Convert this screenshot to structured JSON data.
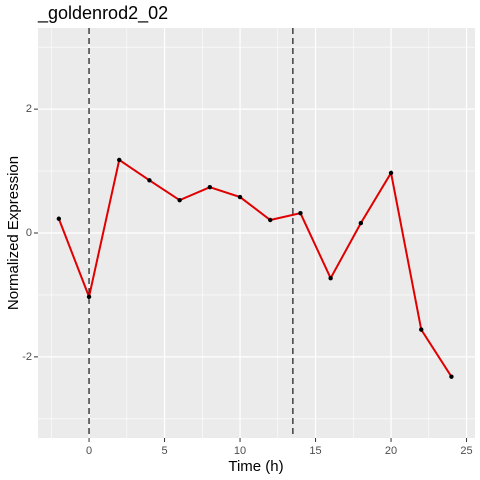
{
  "chart_data": {
    "type": "line",
    "title": "_goldenrod2_02",
    "x_label": "Time (h)",
    "y_label": "Normalized Expression",
    "x": [
      -2,
      0,
      2,
      4,
      6,
      8,
      10,
      12,
      14,
      16,
      18,
      20,
      22,
      24
    ],
    "series": [
      {
        "name": "_goldenrod2_02",
        "color": "#e00000",
        "point_color": "#000000",
        "values": [
          0.23,
          -1.03,
          1.18,
          0.85,
          0.53,
          0.74,
          0.58,
          0.21,
          0.32,
          -0.73,
          0.16,
          0.97,
          -1.56,
          -2.32
        ]
      }
    ],
    "vlines": [
      0,
      13.5
    ],
    "xlim": [
      -3.38,
      25.56
    ],
    "xticks": [
      0,
      5,
      10,
      15,
      20,
      25
    ],
    "ylim": [
      -3.31,
      3.31
    ],
    "yticks": [
      -2,
      0,
      2
    ],
    "grid": true
  }
}
